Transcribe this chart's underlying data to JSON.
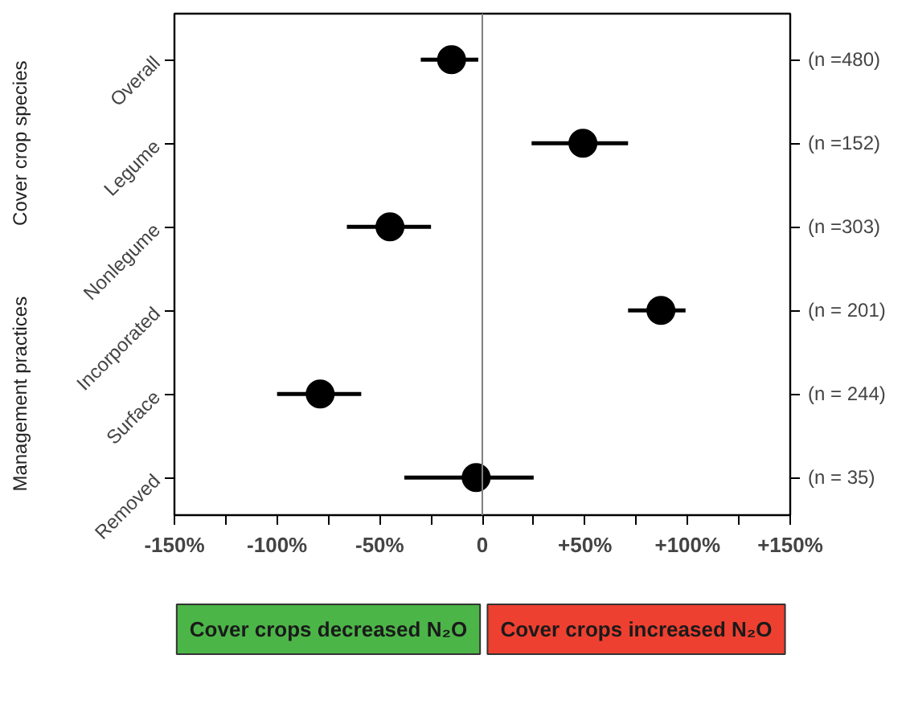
{
  "chart_data": {
    "type": "scatter",
    "orientation": "horizontal",
    "marker": "circle",
    "grid": false,
    "categories": [
      "Overall",
      "Legume",
      "Nonlegume",
      "Incorporated",
      "Surface",
      "Removed"
    ],
    "series": [
      {
        "color": "#000000",
        "values": [
          -15,
          49,
          -45,
          87,
          -79,
          -3
        ],
        "errors": [
          [
            -30,
            -2
          ],
          [
            24,
            71
          ],
          [
            -66,
            -25
          ],
          [
            71,
            99
          ],
          [
            -100,
            -59
          ],
          [
            -38,
            25
          ]
        ]
      }
    ],
    "xlim": [
      -150,
      150
    ],
    "xticks": [
      {
        "value": -150,
        "label": "-150%"
      },
      {
        "value": -125,
        "label": null
      },
      {
        "value": -100,
        "label": "-100%"
      },
      {
        "value": -75,
        "label": null
      },
      {
        "value": -50,
        "label": "-50%"
      },
      {
        "value": -25,
        "label": null
      },
      0,
      {
        "value": 25,
        "label": null
      },
      {
        "value": 50,
        "label": "+50%"
      },
      {
        "value": 75,
        "label": null
      },
      {
        "value": 100,
        "label": "+100%"
      },
      {
        "value": 125,
        "label": null
      },
      {
        "value": 150,
        "label": "+150%"
      }
    ],
    "annotations": [
      "(n =480)",
      "(n =152)",
      "(n =303)",
      "(n = 201)",
      "(n = 244)",
      "(n = 35)",
      "Cover crop species",
      "Management practices",
      "Cover crops decreased N₂O",
      "Cover crops increased N₂O"
    ],
    "ref_lines": [
      {
        "axis": "x",
        "value": 0,
        "color": "#808080"
      }
    ]
  }
}
